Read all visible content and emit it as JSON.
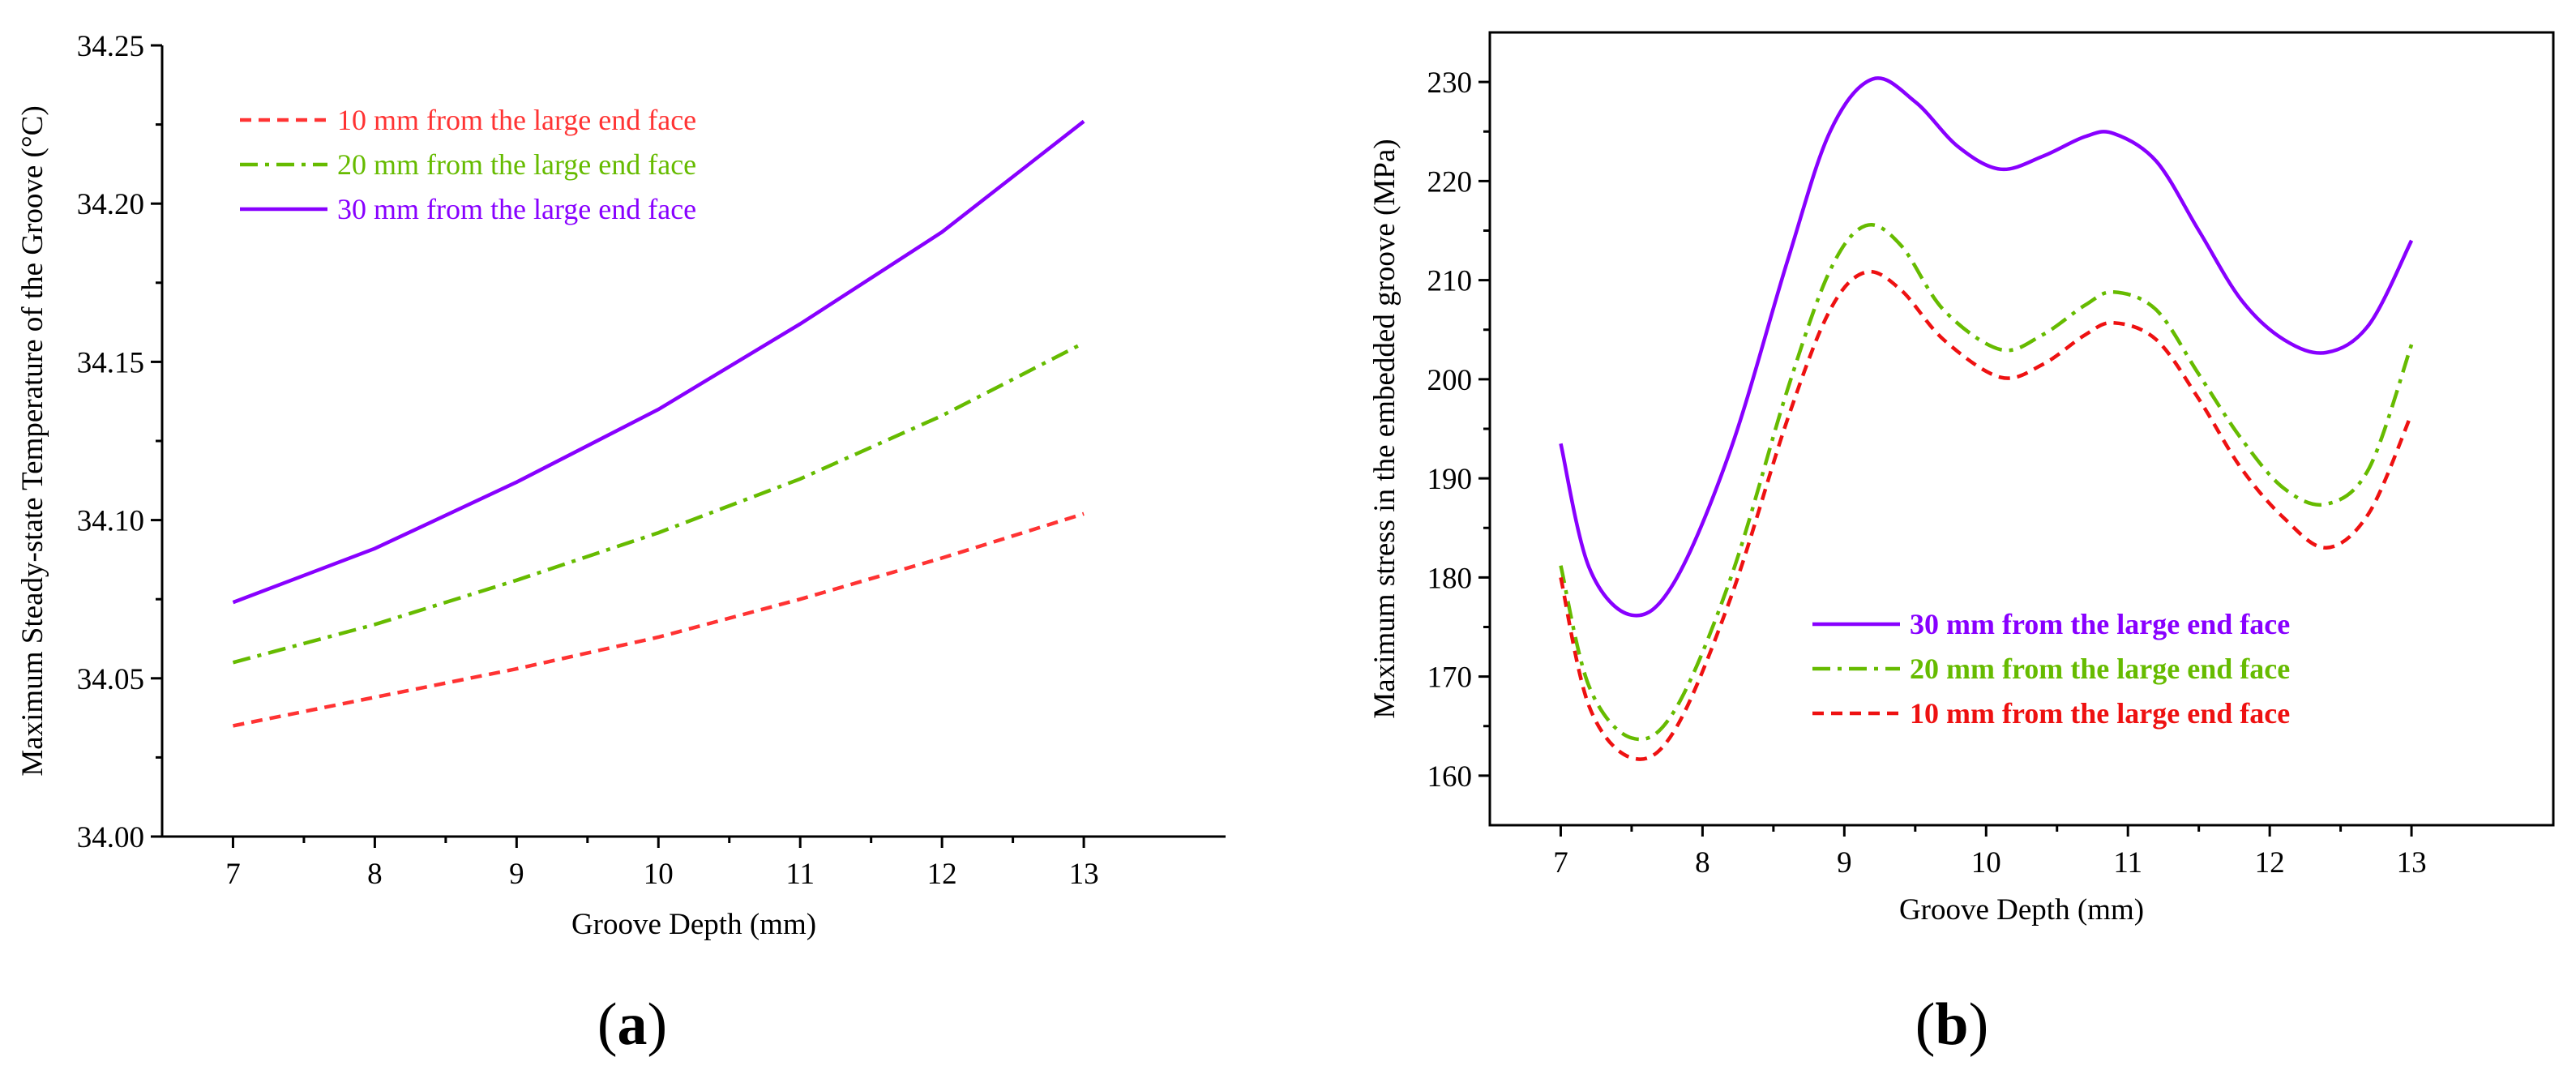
{
  "chart_data": [
    {
      "type": "line",
      "panel": "a",
      "title": "",
      "xlabel": "Groove Depth (mm)",
      "ylabel": "Maximum Steady-state Temperature of the Groove (°C)",
      "xlim": [
        6.5,
        14.0
      ],
      "ylim": [
        34.0,
        34.25
      ],
      "xticks": [
        "7",
        "8",
        "9",
        "10",
        "11",
        "12",
        "13"
      ],
      "yticks": [
        "34.00",
        "34.05",
        "34.10",
        "34.15",
        "34.20",
        "34.25"
      ],
      "legend_position": "top-left",
      "x": [
        7,
        8,
        9,
        10,
        11,
        12,
        13
      ],
      "series": [
        {
          "name": "10 mm from the large end face",
          "color": "#ff3333",
          "dash": "dash",
          "values": [
            34.035,
            34.044,
            34.053,
            34.063,
            34.075,
            34.088,
            34.102
          ]
        },
        {
          "name": "20 mm from the large end face",
          "color": "#66bb00",
          "dash": "dashdot",
          "values": [
            34.055,
            34.067,
            34.081,
            34.096,
            34.113,
            34.133,
            34.156
          ]
        },
        {
          "name": "30 mm from the large end face",
          "color": "#8800ff",
          "dash": "solid",
          "values": [
            34.074,
            34.091,
            34.112,
            34.135,
            34.162,
            34.191,
            34.226
          ]
        }
      ]
    },
    {
      "type": "line",
      "panel": "b",
      "title": "",
      "xlabel": "Groove Depth (mm)",
      "ylabel": "Maximum stress in the embedded groove (MPa)",
      "xlim": [
        6.5,
        14.0
      ],
      "ylim": [
        155,
        235
      ],
      "xticks": [
        "7",
        "8",
        "9",
        "10",
        "11",
        "12",
        "13"
      ],
      "yticks": [
        "160",
        "170",
        "180",
        "190",
        "200",
        "210",
        "220",
        "230"
      ],
      "legend_position": "center-bottom",
      "series": [
        {
          "name": "30 mm from the large end face",
          "color": "#8800ff",
          "dash": "solid",
          "x": [
            7,
            7.2,
            7.5,
            7.8,
            8.2,
            8.6,
            8.9,
            9.2,
            9.5,
            9.8,
            10.1,
            10.4,
            10.7,
            10.9,
            11.2,
            11.5,
            11.8,
            12.1,
            12.4,
            12.7,
            13
          ],
          "values": [
            193.5,
            181,
            176.2,
            179.5,
            193,
            212,
            225,
            230.3,
            228,
            223.5,
            221.2,
            222.5,
            224.5,
            224.8,
            222,
            215,
            208,
            204,
            202.7,
            205.5,
            214
          ]
        },
        {
          "name": "20 mm from the large end face",
          "color": "#66bb00",
          "dash": "dashdot",
          "x": [
            7,
            7.2,
            7.5,
            7.8,
            8.2,
            8.6,
            8.9,
            9.15,
            9.4,
            9.7,
            10.1,
            10.4,
            10.7,
            10.9,
            11.2,
            11.5,
            11.8,
            12.1,
            12.4,
            12.7,
            13
          ],
          "values": [
            181.2,
            169,
            163.8,
            166.5,
            180,
            199,
            211,
            215.5,
            213.5,
            207,
            203,
            204.5,
            207.5,
            208.8,
            207,
            200.5,
            194,
            189,
            187.4,
            191,
            203.5
          ]
        },
        {
          "name": "10 mm from the large end face",
          "color": "#ee1111",
          "dash": "dash",
          "x": [
            7,
            7.2,
            7.5,
            7.8,
            8.2,
            8.6,
            8.9,
            9.15,
            9.4,
            9.7,
            10.1,
            10.4,
            10.7,
            10.9,
            11.2,
            11.5,
            11.8,
            12.1,
            12.4,
            12.7,
            13
          ],
          "values": [
            180,
            167,
            161.8,
            164.5,
            178,
            196,
            207,
            210.8,
            209,
            204,
            200.2,
            201.5,
            204.5,
            205.7,
            204,
            198,
            191,
            186,
            183,
            186.5,
            196.5
          ]
        }
      ]
    }
  ],
  "panel_labels": {
    "a": "a",
    "b": "b",
    "open": "(",
    "close": ")"
  }
}
